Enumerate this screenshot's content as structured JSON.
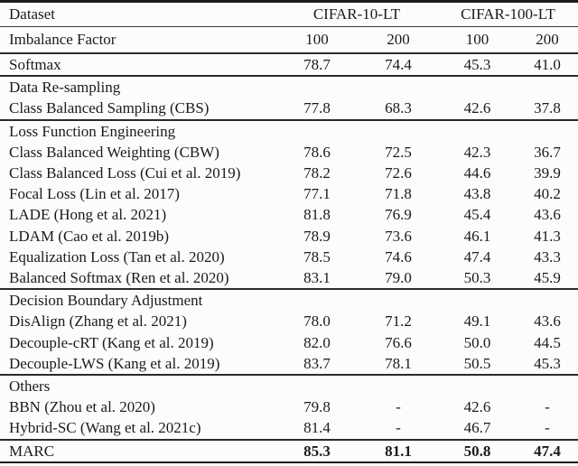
{
  "table": {
    "header": {
      "dataset_label": "Dataset",
      "group_headers": [
        "CIFAR-10-LT",
        "CIFAR-100-LT"
      ],
      "subheader_label": "Imbalance Factor",
      "imbalance_factors": [
        "100",
        "200",
        "100",
        "200"
      ]
    },
    "sections": [
      {
        "title": "",
        "rows": [
          {
            "method": "Softmax",
            "values": [
              "78.7",
              "74.4",
              "45.3",
              "41.0"
            ],
            "bold_values": false
          }
        ]
      },
      {
        "title": "Data Re-sampling",
        "rows": [
          {
            "method": "Class Balanced Sampling (CBS)",
            "values": [
              "77.8",
              "68.3",
              "42.6",
              "37.8"
            ],
            "bold_values": false
          }
        ]
      },
      {
        "title": "Loss Function Engineering",
        "rows": [
          {
            "method": "Class Balanced Weighting (CBW)",
            "values": [
              "78.6",
              "72.5",
              "42.3",
              "36.7"
            ],
            "bold_values": false
          },
          {
            "method": "Class Balanced Loss (Cui et al. 2019)",
            "values": [
              "78.2",
              "72.6",
              "44.6",
              "39.9"
            ],
            "bold_values": false
          },
          {
            "method": "Focal Loss (Lin et al. 2017)",
            "values": [
              "77.1",
              "71.8",
              "43.8",
              "40.2"
            ],
            "bold_values": false
          },
          {
            "method": "LADE (Hong et al. 2021)",
            "values": [
              "81.8",
              "76.9",
              "45.4",
              "43.6"
            ],
            "bold_values": false
          },
          {
            "method": "LDAM (Cao et al. 2019b)",
            "values": [
              "78.9",
              "73.6",
              "46.1",
              "41.3"
            ],
            "bold_values": false
          },
          {
            "method": "Equalization Loss (Tan et al. 2020)",
            "values": [
              "78.5",
              "74.6",
              "47.4",
              "43.3"
            ],
            "bold_values": false
          },
          {
            "method": "Balanced Softmax (Ren et al. 2020)",
            "values": [
              "83.1",
              "79.0",
              "50.3",
              "45.9"
            ],
            "bold_values": false
          }
        ]
      },
      {
        "title": "Decision Boundary Adjustment",
        "rows": [
          {
            "method": "DisAlign (Zhang et al. 2021)",
            "values": [
              "78.0",
              "71.2",
              "49.1",
              "43.6"
            ],
            "bold_values": false
          },
          {
            "method": "Decouple-cRT (Kang et al. 2019)",
            "values": [
              "82.0",
              "76.6",
              "50.0",
              "44.5"
            ],
            "bold_values": false
          },
          {
            "method": "Decouple-LWS (Kang et al. 2019)",
            "values": [
              "83.7",
              "78.1",
              "50.5",
              "45.3"
            ],
            "bold_values": false
          }
        ]
      },
      {
        "title": "Others",
        "rows": [
          {
            "method": "BBN (Zhou et al. 2020)",
            "values": [
              "79.8",
              "-",
              "42.6",
              "-"
            ],
            "bold_values": false
          },
          {
            "method": "Hybrid-SC (Wang et al. 2021c)",
            "values": [
              "81.4",
              "-",
              "46.7",
              "-"
            ],
            "bold_values": false
          }
        ]
      },
      {
        "title": "",
        "rows": [
          {
            "method": "MARC",
            "values": [
              "85.3",
              "81.1",
              "50.8",
              "47.4"
            ],
            "bold_values": true
          }
        ]
      }
    ],
    "colors": {
      "background": "#fcfcfc",
      "text": "#1b1b1b",
      "rule": "#1c1c1c"
    }
  }
}
